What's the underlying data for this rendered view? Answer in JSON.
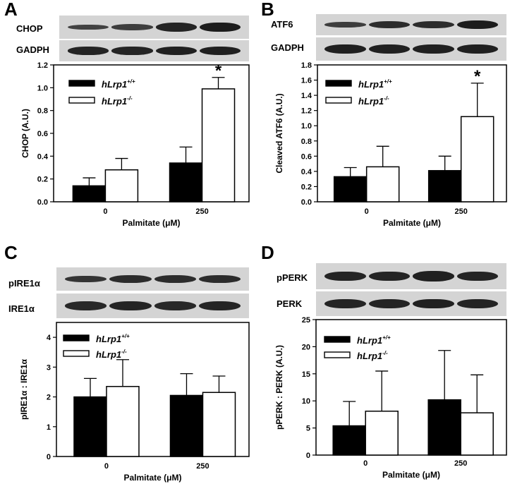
{
  "panels": [
    {
      "letter": "A",
      "blot_labels": [
        "CHOP",
        "GADPH"
      ],
      "band_strengths": [
        [
          0.55,
          0.6,
          0.9,
          1.0
        ],
        [
          0.9,
          0.9,
          0.95,
          0.95
        ]
      ],
      "legend_entries": [
        "hLrp1",
        "hLrp1"
      ],
      "legend_superscripts": [
        "+/+",
        "-/-"
      ],
      "star": "*"
    },
    {
      "letter": "B",
      "blot_labels": [
        "ATF6",
        "GADPH"
      ],
      "band_strengths": [
        [
          0.6,
          0.8,
          0.8,
          1.0
        ],
        [
          0.95,
          0.95,
          0.95,
          0.95
        ]
      ],
      "legend_entries": [
        "hLrp1",
        "hLrp1"
      ],
      "legend_superscripts": [
        "+/+",
        "-/-"
      ],
      "star": "*"
    },
    {
      "letter": "C",
      "blot_labels": [
        "pIRE1α",
        "IRE1α"
      ],
      "band_strengths": [
        [
          0.7,
          0.8,
          0.8,
          0.8
        ],
        [
          0.85,
          0.9,
          0.85,
          0.9
        ]
      ],
      "legend_entries": [
        "hLrp1",
        "hLrp1"
      ],
      "legend_superscripts": [
        "+/+",
        "-/-"
      ],
      "star": ""
    },
    {
      "letter": "D",
      "blot_labels": [
        "pPERK",
        "PERK"
      ],
      "band_strengths": [
        [
          0.9,
          0.9,
          0.95,
          0.9
        ],
        [
          0.9,
          0.9,
          0.95,
          0.9
        ]
      ],
      "legend_entries": [
        "hLrp1",
        "hLrp1"
      ],
      "legend_superscripts": [
        "+/+",
        "-/-"
      ],
      "star": ""
    }
  ],
  "colors": {
    "wt": "#000000",
    "ko": "#ffffff",
    "blot_bg": "#d4d4d4",
    "band": "#1c1c1c"
  },
  "chart_data": [
    {
      "type": "bar",
      "categories": [
        "0",
        "250"
      ],
      "series": [
        {
          "name": "hLrp1+/+",
          "values": [
            0.14,
            0.34
          ],
          "errors": [
            0.07,
            0.14
          ]
        },
        {
          "name": "hLrp1-/-",
          "values": [
            0.28,
            0.99
          ],
          "errors": [
            0.1,
            0.1
          ]
        }
      ],
      "xlabel": "Palmitate (μM)",
      "ylabel": "CHOP (A.U.)",
      "ylim": [
        0,
        1.2
      ],
      "yticks": [
        "0.0",
        "0.2",
        "0.4",
        "0.6",
        "0.8",
        "1.0",
        "1.2"
      ],
      "significant": [
        {
          "category": "250",
          "series": "hLrp1-/-"
        }
      ]
    },
    {
      "type": "bar",
      "categories": [
        "0",
        "250"
      ],
      "series": [
        {
          "name": "hLrp1+/+",
          "values": [
            0.33,
            0.41
          ],
          "errors": [
            0.12,
            0.19
          ]
        },
        {
          "name": "hLrp1-/-",
          "values": [
            0.46,
            1.12
          ],
          "errors": [
            0.27,
            0.44
          ]
        }
      ],
      "xlabel": "Palmitate (μM)",
      "ylabel": "Cleaved ATF6 (A.U.)",
      "ylim": [
        0,
        1.8
      ],
      "yticks": [
        "0.0",
        "0.2",
        "0.4",
        "0.6",
        "0.8",
        "1.0",
        "1.2",
        "1.4",
        "1.6",
        "1.8"
      ],
      "significant": [
        {
          "category": "250",
          "series": "hLrp1-/-"
        }
      ]
    },
    {
      "type": "bar",
      "categories": [
        "0",
        "250"
      ],
      "series": [
        {
          "name": "hLrp1+/+",
          "values": [
            2.0,
            2.05
          ],
          "errors": [
            0.62,
            0.73
          ]
        },
        {
          "name": "hLrp1-/-",
          "values": [
            2.35,
            2.15
          ],
          "errors": [
            0.9,
            0.55
          ]
        }
      ],
      "xlabel": "Palmitate (μM)",
      "ylabel": "pIRE1α : IRE1α",
      "ylim": [
        0,
        4.5
      ],
      "yticks": [
        "0",
        "1",
        "2",
        "3",
        "4"
      ],
      "significant": []
    },
    {
      "type": "bar",
      "categories": [
        "0",
        "250"
      ],
      "series": [
        {
          "name": "hLrp1+/+",
          "values": [
            5.4,
            10.2
          ],
          "errors": [
            4.5,
            9.1
          ]
        },
        {
          "name": "hLrp1-/-",
          "values": [
            8.1,
            7.8
          ],
          "errors": [
            7.4,
            7.0
          ]
        }
      ],
      "xlabel": "Palmitate (μM)",
      "ylabel": "pPERK : PERK (A.U.)",
      "ylim": [
        0,
        25
      ],
      "yticks": [
        "0",
        "5",
        "10",
        "15",
        "20",
        "25"
      ],
      "significant": []
    }
  ]
}
